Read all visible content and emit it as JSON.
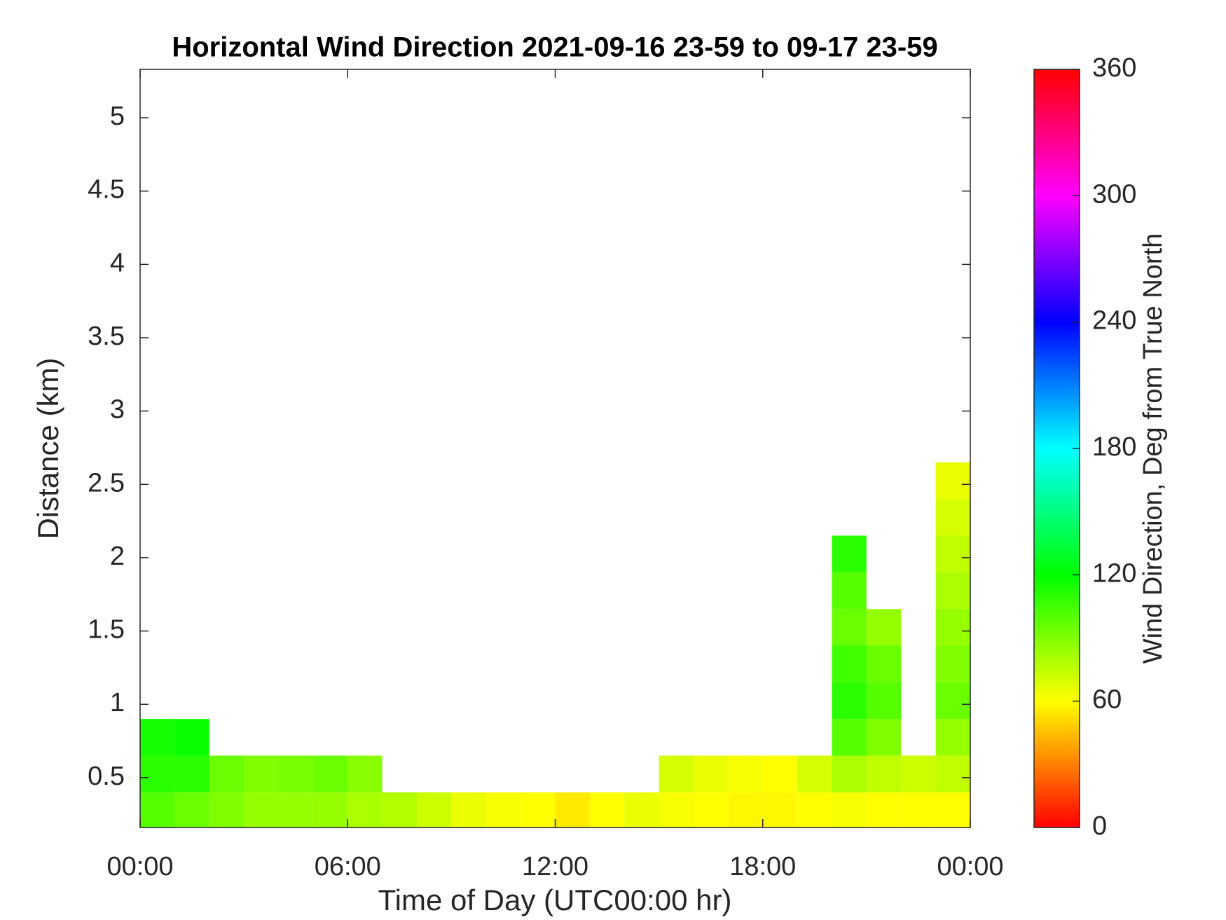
{
  "chart_data": {
    "type": "heatmap",
    "title": "Horizontal Wind Direction 2021-09-16 23-59 to 09-17 23-59",
    "xlabel": "Time of Day (UTC00:00 hr)",
    "ylabel": "Distance (km)",
    "colorbar_label": "Wind Direction, Deg from True North",
    "colormap": "hsv",
    "xlim": [
      0,
      24
    ],
    "xticks": [
      {
        "value": 0,
        "label": "00:00"
      },
      {
        "value": 6,
        "label": "06:00"
      },
      {
        "value": 12,
        "label": "12:00"
      },
      {
        "value": 18,
        "label": "18:00"
      },
      {
        "value": 24,
        "label": "00:00"
      }
    ],
    "ylim": [
      0.16,
      5.33
    ],
    "yticks": [
      0.5,
      1,
      1.5,
      2,
      2.5,
      3,
      3.5,
      4,
      4.5,
      5
    ],
    "clim": [
      0,
      360
    ],
    "cticks": [
      0,
      60,
      120,
      180,
      240,
      300,
      360
    ],
    "xbins": [
      0,
      1,
      2,
      3,
      4,
      5,
      6,
      7,
      8,
      9,
      10,
      11,
      12,
      13,
      14,
      15,
      16,
      17,
      18,
      19,
      20,
      21,
      22,
      23,
      24
    ],
    "ybins": [
      0.16,
      0.4,
      0.65,
      0.9,
      1.15,
      1.4,
      1.65,
      1.9,
      2.15,
      2.4,
      2.65
    ],
    "z": [
      [
        100,
        95,
        90,
        85,
        85,
        85,
        80,
        78,
        72,
        65,
        62,
        60,
        55,
        60,
        65,
        62,
        60,
        58,
        58,
        60,
        62,
        60,
        60,
        60
      ],
      [
        110,
        110,
        95,
        90,
        92,
        95,
        88,
        null,
        null,
        null,
        null,
        null,
        null,
        null,
        null,
        70,
        65,
        62,
        60,
        70,
        80,
        75,
        72,
        75
      ],
      [
        115,
        118,
        null,
        null,
        null,
        null,
        null,
        null,
        null,
        null,
        null,
        null,
        null,
        null,
        null,
        null,
        null,
        null,
        null,
        null,
        100,
        90,
        null,
        85
      ],
      [
        null,
        null,
        null,
        null,
        null,
        null,
        null,
        null,
        null,
        null,
        null,
        null,
        null,
        null,
        null,
        null,
        null,
        null,
        null,
        null,
        110,
        100,
        null,
        95
      ],
      [
        null,
        null,
        null,
        null,
        null,
        null,
        null,
        null,
        null,
        null,
        null,
        null,
        null,
        null,
        null,
        null,
        null,
        null,
        null,
        null,
        105,
        95,
        null,
        90
      ],
      [
        null,
        null,
        null,
        null,
        null,
        null,
        null,
        null,
        null,
        null,
        null,
        null,
        null,
        null,
        null,
        null,
        null,
        null,
        null,
        null,
        95,
        85,
        null,
        85
      ],
      [
        null,
        null,
        null,
        null,
        null,
        null,
        null,
        null,
        null,
        null,
        null,
        null,
        null,
        null,
        null,
        null,
        null,
        null,
        null,
        null,
        100,
        null,
        null,
        80
      ],
      [
        null,
        null,
        null,
        null,
        null,
        null,
        null,
        null,
        null,
        null,
        null,
        null,
        null,
        null,
        null,
        null,
        null,
        null,
        null,
        null,
        110,
        null,
        null,
        75
      ],
      [
        null,
        null,
        null,
        null,
        null,
        null,
        null,
        null,
        null,
        null,
        null,
        null,
        null,
        null,
        null,
        null,
        null,
        null,
        null,
        null,
        null,
        null,
        null,
        70
      ],
      [
        null,
        null,
        null,
        null,
        null,
        null,
        null,
        null,
        null,
        null,
        null,
        null,
        null,
        null,
        null,
        null,
        null,
        null,
        null,
        null,
        null,
        null,
        null,
        65
      ]
    ]
  }
}
